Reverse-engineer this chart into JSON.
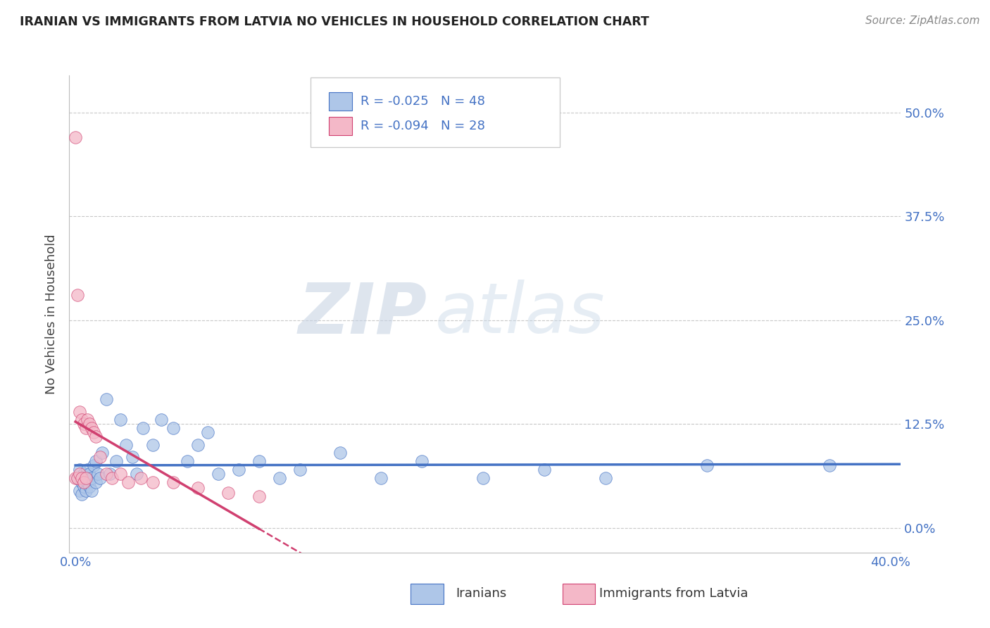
{
  "title": "IRANIAN VS IMMIGRANTS FROM LATVIA NO VEHICLES IN HOUSEHOLD CORRELATION CHART",
  "source": "Source: ZipAtlas.com",
  "ylabel": "No Vehicles in Household",
  "xlabel_iranians": "Iranians",
  "xlabel_latvia": "Immigrants from Latvia",
  "xlim": [
    -0.003,
    0.405
  ],
  "ylim": [
    -0.03,
    0.545
  ],
  "yticks": [
    0.0,
    0.125,
    0.25,
    0.375,
    0.5
  ],
  "ytick_labels": [
    "0.0%",
    "12.5%",
    "25.0%",
    "37.5%",
    "50.0%"
  ],
  "xticks": [
    0.0,
    0.4
  ],
  "xtick_labels": [
    "0.0%",
    "40.0%"
  ],
  "legend_r1": "-0.025",
  "legend_n1": "48",
  "legend_r2": "-0.094",
  "legend_n2": "28",
  "color_iranians": "#aec6e8",
  "color_latvia": "#f4b8c8",
  "line_color_iranians": "#4472c4",
  "line_color_latvia": "#d04070",
  "watermark_zip": "ZIP",
  "watermark_atlas": "atlas",
  "background_color": "#ffffff",
  "grid_color": "#c8c8c8",
  "iranians_x": [
    0.001,
    0.002,
    0.002,
    0.003,
    0.003,
    0.004,
    0.004,
    0.005,
    0.005,
    0.006,
    0.006,
    0.007,
    0.007,
    0.008,
    0.008,
    0.009,
    0.01,
    0.01,
    0.011,
    0.012,
    0.013,
    0.015,
    0.017,
    0.02,
    0.022,
    0.025,
    0.028,
    0.03,
    0.033,
    0.038,
    0.042,
    0.048,
    0.055,
    0.06,
    0.065,
    0.07,
    0.08,
    0.09,
    0.1,
    0.11,
    0.13,
    0.15,
    0.17,
    0.2,
    0.23,
    0.26,
    0.31,
    0.37
  ],
  "iranians_y": [
    0.06,
    0.07,
    0.045,
    0.055,
    0.04,
    0.065,
    0.05,
    0.06,
    0.045,
    0.07,
    0.055,
    0.065,
    0.05,
    0.06,
    0.045,
    0.075,
    0.08,
    0.055,
    0.065,
    0.06,
    0.09,
    0.155,
    0.065,
    0.08,
    0.13,
    0.1,
    0.085,
    0.065,
    0.12,
    0.1,
    0.13,
    0.12,
    0.08,
    0.1,
    0.115,
    0.065,
    0.07,
    0.08,
    0.06,
    0.07,
    0.09,
    0.06,
    0.08,
    0.06,
    0.07,
    0.06,
    0.075,
    0.075
  ],
  "latvia_x": [
    0.0,
    0.0,
    0.001,
    0.001,
    0.002,
    0.002,
    0.003,
    0.003,
    0.004,
    0.004,
    0.005,
    0.005,
    0.006,
    0.007,
    0.008,
    0.009,
    0.01,
    0.012,
    0.015,
    0.018,
    0.022,
    0.026,
    0.032,
    0.038,
    0.048,
    0.06,
    0.075,
    0.09
  ],
  "latvia_y": [
    0.47,
    0.06,
    0.28,
    0.06,
    0.14,
    0.065,
    0.13,
    0.06,
    0.125,
    0.055,
    0.12,
    0.06,
    0.13,
    0.125,
    0.12,
    0.115,
    0.11,
    0.085,
    0.065,
    0.06,
    0.065,
    0.055,
    0.06,
    0.055,
    0.055,
    0.048,
    0.042,
    0.038
  ]
}
